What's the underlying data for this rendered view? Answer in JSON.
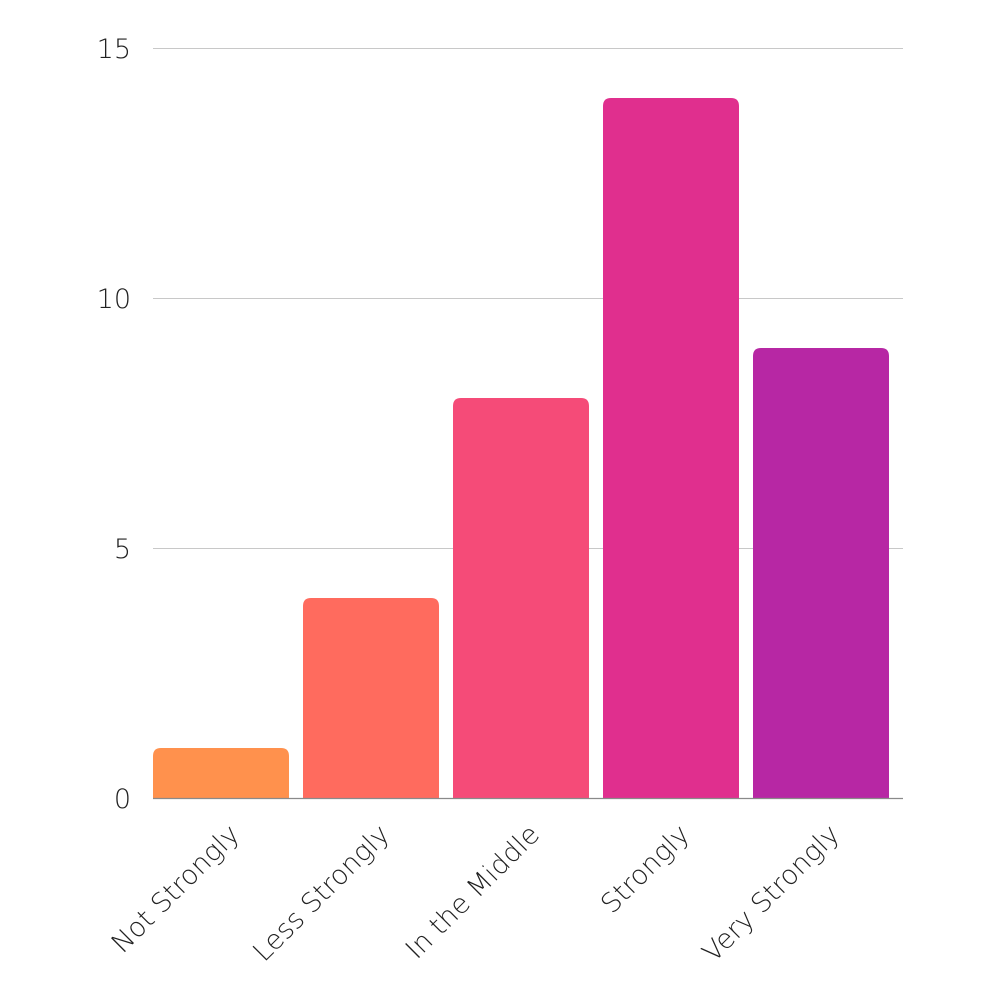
{
  "chart_data": {
    "type": "bar",
    "title": "",
    "xlabel": "",
    "ylabel": "",
    "categories": [
      "Not Strongly",
      "Less Strongly",
      "In the Middle",
      "Strongly",
      "Very Strongly"
    ],
    "values": [
      1,
      4,
      8,
      14,
      9
    ],
    "colors": [
      "#ff914d",
      "#ff6b5e",
      "#f54b78",
      "#e02f8e",
      "#b727a4"
    ],
    "ylim": [
      0,
      15
    ],
    "y_ticks": [
      0,
      5,
      10,
      15
    ],
    "y_tick_labels": [
      "0",
      "5",
      "10",
      "15"
    ],
    "grid": true,
    "legend": "none"
  }
}
